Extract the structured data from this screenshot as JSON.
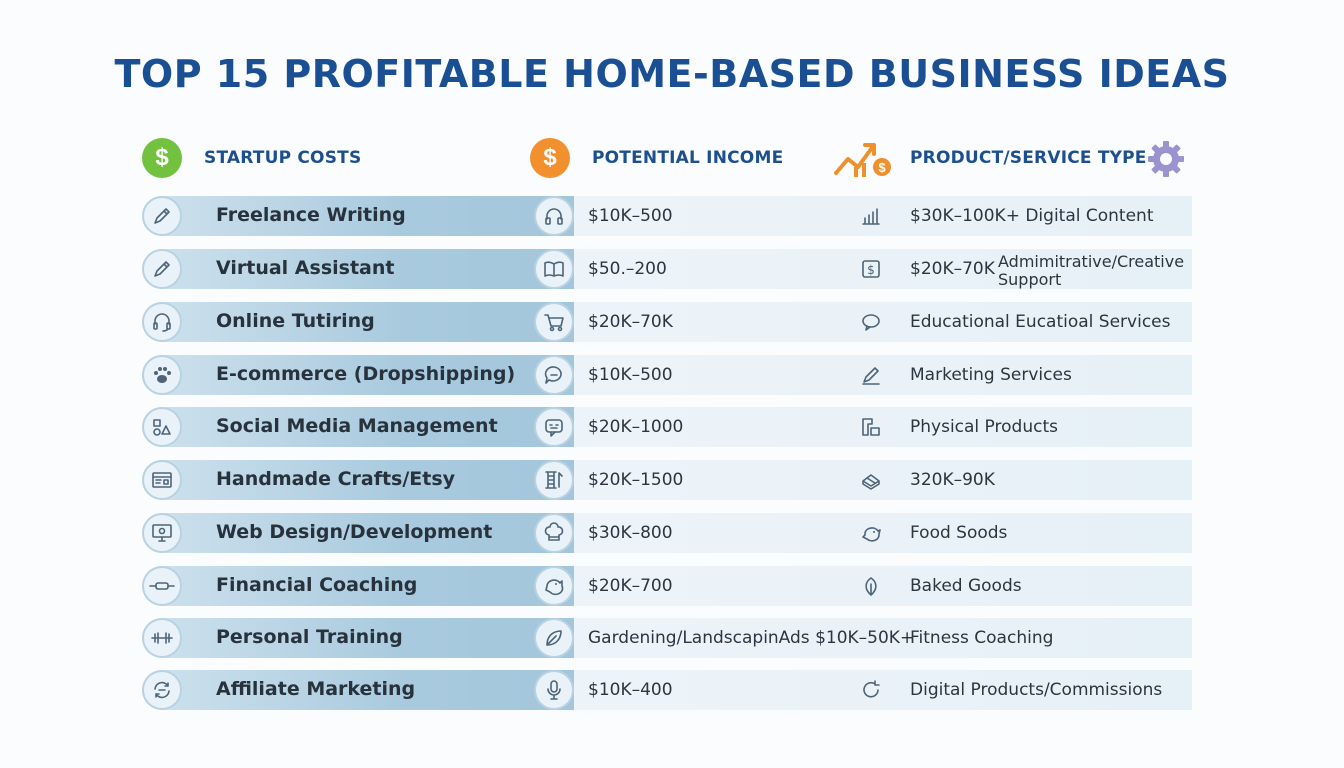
{
  "title": "TOP 15 PROFITABLE HOME-BASED BUSINESS IDEAS",
  "headers": {
    "startup_costs": "STARTUP COSTS",
    "potential_income": "POTENTIAL INCOME",
    "product_service_type": "PRODUCT/SERVICE TYPE",
    "dollar_symbol": "$"
  },
  "colors": {
    "title": "#1a4f93",
    "green_coin": "#72c13f",
    "orange_coin": "#f2902e",
    "gear": "#9a93cf"
  },
  "rows": [
    {
      "name": "Freelance Writing",
      "income": "$10K–500",
      "type": "$30K–100K+ Digital Content",
      "type_extra": "",
      "icon1": "pencil-icon",
      "icon2": "headphones-icon",
      "icon3": "bar-chart-icon"
    },
    {
      "name": "Virtual Assistant",
      "income": "$50.–200",
      "type": "$20K–70K",
      "type_extra": "Admimitrative/Creative Support",
      "icon1": "pencil-icon",
      "icon2": "book-icon",
      "icon3": "dollar-box-icon"
    },
    {
      "name": "Online Tutiring",
      "income": "$20K–70K",
      "type": "Educational Eucatioal Services",
      "type_extra": "",
      "icon1": "headset-icon",
      "icon2": "cart-icon",
      "icon3": "chat-icon"
    },
    {
      "name": "E-commerce (Dropshipping)",
      "income": "$10K–500",
      "type": "Marketing Services",
      "type_extra": "",
      "icon1": "paw-icon",
      "icon2": "speech-bubble-icon",
      "icon3": "pen-icon"
    },
    {
      "name": "Social Media Management",
      "income": "$20K–1000",
      "type": "Physical Products",
      "type_extra": "",
      "icon1": "shapes-icon",
      "icon2": "chat-box-icon",
      "icon3": "blocks-icon"
    },
    {
      "name": "Handmade Crafts/Etsy",
      "income": "$20K–1500",
      "type": "320K–90K",
      "type_extra": "",
      "icon1": "browser-icon",
      "icon2": "spool-icon",
      "icon3": "cake-icon"
    },
    {
      "name": "Web Design/Development",
      "income": "$30K–800",
      "type": "Food Soods",
      "type_extra": "",
      "icon1": "monitor-icon",
      "icon2": "chef-hat-icon",
      "icon3": "piggy-bank-icon"
    },
    {
      "name": "Financial Coaching",
      "income": "$20K–700",
      "type": "Baked Goods",
      "type_extra": "",
      "icon1": "rolling-pin-icon",
      "icon2": "piggy-bank-icon",
      "icon3": "leaf-icon"
    },
    {
      "name": "Personal Training",
      "income": "Gardening/LandscapinAds  $10K–50K+",
      "type": "Fitness Coaching",
      "type_extra": "",
      "icon1": "dumbbell-icon",
      "icon2": "leaf-icon",
      "icon3": ""
    },
    {
      "name": "Affiliate Marketing",
      "income": "$10K–400",
      "type": "Digital Products/Commissions",
      "type_extra": "",
      "icon1": "refresh-icon",
      "icon2": "microphone-icon",
      "icon3": "refresh-icon"
    }
  ]
}
